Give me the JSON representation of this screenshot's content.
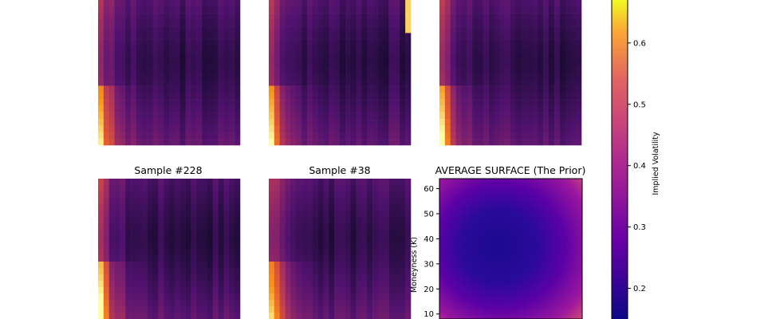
{
  "chart_data": [
    {
      "type": "heatmap",
      "title": "",
      "panel": "top-left",
      "note": "top of figure cropped; title not visible",
      "style": "vertical-bands",
      "colormap": "inferno"
    },
    {
      "type": "heatmap",
      "title": "",
      "panel": "top-middle",
      "note": "top of figure cropped; title not visible",
      "style": "vertical-bands",
      "colormap": "inferno"
    },
    {
      "type": "heatmap",
      "title": "",
      "panel": "top-right",
      "note": "top of figure cropped; title not visible",
      "style": "vertical-bands",
      "colormap": "inferno"
    },
    {
      "type": "heatmap",
      "title": "Sample #228",
      "panel": "bottom-left",
      "style": "vertical-bands",
      "colormap": "inferno"
    },
    {
      "type": "heatmap",
      "title": "Sample #38",
      "panel": "bottom-middle",
      "style": "vertical-bands",
      "colormap": "inferno"
    },
    {
      "type": "heatmap",
      "title": "AVERAGE SURFACE (The Prior)",
      "panel": "bottom-right",
      "style": "smooth",
      "colormap": "plasma",
      "ylabel": "Moneyness (K)",
      "yticks": [
        10,
        20,
        30,
        40,
        50,
        60
      ],
      "ylim": [
        8,
        64
      ]
    }
  ],
  "colorbar": {
    "label": "Implied Volatility",
    "ticks": [
      0.2,
      0.3,
      0.4,
      0.5,
      0.6
    ],
    "range": [
      0.15,
      0.67
    ],
    "colormap": "plasma"
  }
}
